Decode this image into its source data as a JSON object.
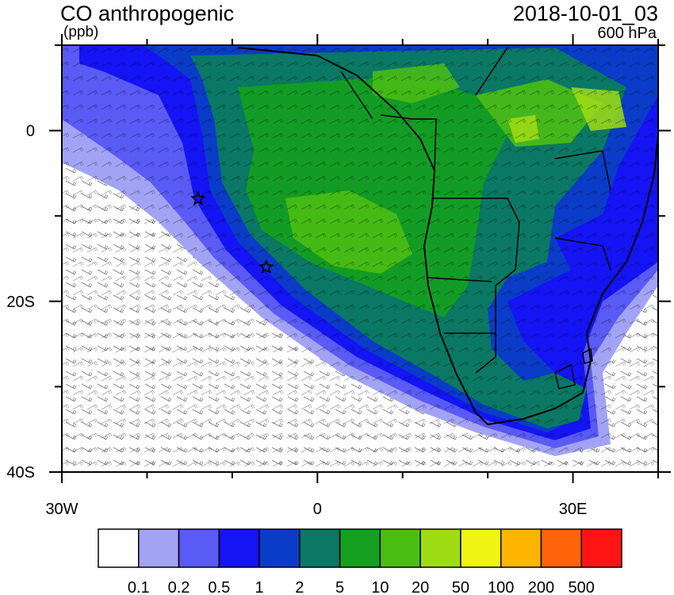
{
  "header": {
    "title": "CO anthropogenic",
    "units": "(ppb)",
    "datetime": "2018-10-01_03",
    "level": "600 hPa"
  },
  "axes": {
    "lat_labels": [
      {
        "text": "0",
        "lat": 0
      },
      {
        "text": "20S",
        "lat": -20
      },
      {
        "text": "40S",
        "lat": -40
      }
    ],
    "lon_labels": [
      {
        "text": "30W",
        "lon": -30
      },
      {
        "text": "0",
        "lon": 0
      },
      {
        "text": "30E",
        "lon": 30
      }
    ],
    "lon_range": [
      -30,
      40
    ],
    "lat_range": [
      -40,
      10
    ]
  },
  "colorbar": {
    "colors": [
      "#ffffff",
      "#a3a3f5",
      "#5a5af5",
      "#1414f5",
      "#0a3cc8",
      "#0a7864",
      "#14a01e",
      "#4bbe14",
      "#a0dc14",
      "#f0f514",
      "#ffb400",
      "#ff640a",
      "#ff1414"
    ],
    "labels": [
      "0.1",
      "0.2",
      "0.5",
      "1",
      "2",
      "5",
      "10",
      "20",
      "50",
      "100",
      "200",
      "500"
    ]
  },
  "markers": [
    {
      "name": "star",
      "lon": -14,
      "lat": -8
    },
    {
      "name": "star",
      "lon": -6,
      "lat": -16
    }
  ]
}
